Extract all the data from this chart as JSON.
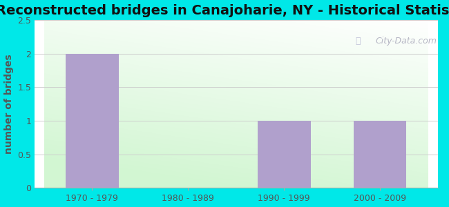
{
  "title": "Reconstructed bridges in Canajoharie, NY - Historical Statistics",
  "categories": [
    "1970 - 1979",
    "1980 - 1989",
    "1990 - 1999",
    "2000 - 2009"
  ],
  "values": [
    2,
    0,
    1,
    1
  ],
  "bar_color": "#b0a0cc",
  "ylabel": "number of bridges",
  "ylim": [
    0,
    2.5
  ],
  "yticks": [
    0,
    0.5,
    1,
    1.5,
    2,
    2.5
  ],
  "background_outer": "#00e8e8",
  "background_grad_topleft": "#c8ecc8",
  "background_grad_topright": "#e8f4e8",
  "background_grad_bottom": "#d8f0d8",
  "background_plot_white": "#f5fff5",
  "grid_color": "#cccccc",
  "title_fontsize": 14,
  "axis_fontsize": 10,
  "tick_fontsize": 9,
  "watermark": "City-Data.com",
  "ylabel_color": "#555555",
  "tick_color": "#555555"
}
